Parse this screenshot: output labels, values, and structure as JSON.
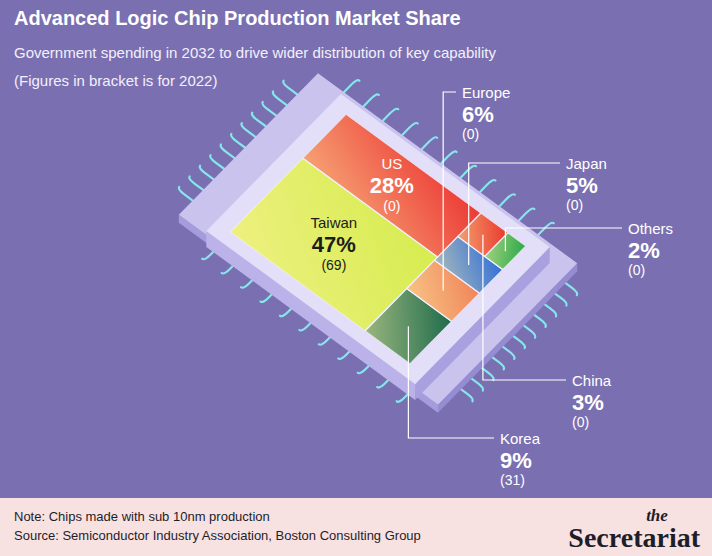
{
  "chart_data": {
    "type": "treemap",
    "title": "Advanced Logic Chip Production Market Share",
    "subtitle": "Government spending in 2032 to drive wider distribution of key capability",
    "annotations": [
      "(Figures in bracket is for 2022)"
    ],
    "categories": [
      "Taiwan",
      "US",
      "Korea",
      "Europe",
      "Japan",
      "China",
      "Others"
    ],
    "values": [
      47,
      28,
      9,
      6,
      5,
      3,
      2
    ],
    "value_labels": [
      "47%",
      "28%",
      "9%",
      "6%",
      "5%",
      "3%",
      "2%"
    ],
    "colors": [
      "#d6ec4f",
      "#ec3a35",
      "#1f6b4c",
      "#f0855a",
      "#3470d6",
      "#e8382b",
      "#2ca84a"
    ],
    "values_2022": [
      69,
      0,
      31,
      0,
      0,
      0,
      0
    ],
    "value_labels_2022": [
      "(69)",
      "(0)",
      "(31)",
      "(0)",
      "(0)",
      "(0)",
      "(0)"
    ],
    "data_labels": true,
    "note": "Note: Chips made with sub 10nm production",
    "source": "Source: Semiconductor Industry Association, Boston Consulting Group",
    "brand": [
      "the",
      "Secretariat"
    ]
  }
}
